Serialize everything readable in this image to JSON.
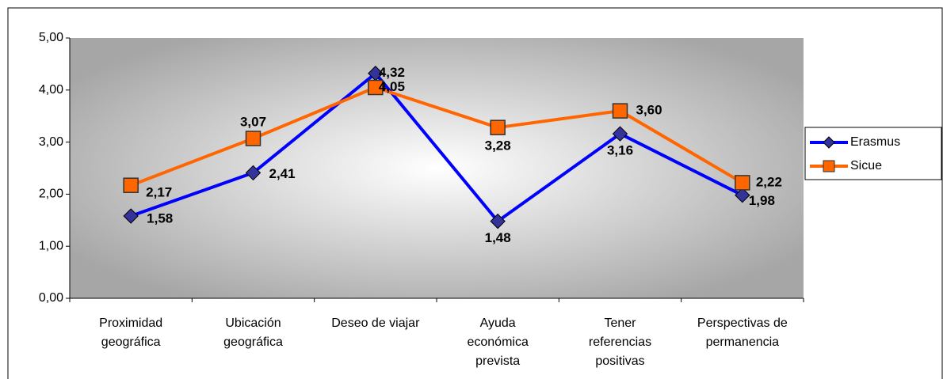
{
  "chart_data": {
    "type": "line",
    "categories": [
      "Proximidad\ngeográfica",
      "Ubicación\ngeográfica",
      "Deseo de viajar",
      "Ayuda\neconómica\nprevista",
      "Tener\nreferencias\npositivas",
      "Perspectivas de\npermanencia"
    ],
    "series": [
      {
        "name": "Erasmus",
        "color": "#0000ff",
        "marker": "diamond",
        "values": [
          1.58,
          2.41,
          4.32,
          1.48,
          3.16,
          1.98
        ],
        "value_labels": [
          "1,58",
          "2,41",
          "4,32",
          "1,48",
          "3,16",
          "1,98"
        ]
      },
      {
        "name": "Sicue",
        "color": "#ff6600",
        "marker": "square",
        "values": [
          2.17,
          3.07,
          4.05,
          3.28,
          3.6,
          2.22
        ],
        "value_labels": [
          "2,17",
          "3,07",
          "4,05",
          "3,28",
          "3,60",
          "2,22"
        ]
      }
    ],
    "ylim": [
      0,
      5
    ],
    "yticks": [
      {
        "value": 0,
        "label": "0,00"
      },
      {
        "value": 1,
        "label": "1,00"
      },
      {
        "value": 2,
        "label": "2,00"
      },
      {
        "value": 3,
        "label": "3,00"
      },
      {
        "value": 4,
        "label": "4,00"
      },
      {
        "value": 5,
        "label": "5,00"
      }
    ],
    "legend": "right"
  }
}
